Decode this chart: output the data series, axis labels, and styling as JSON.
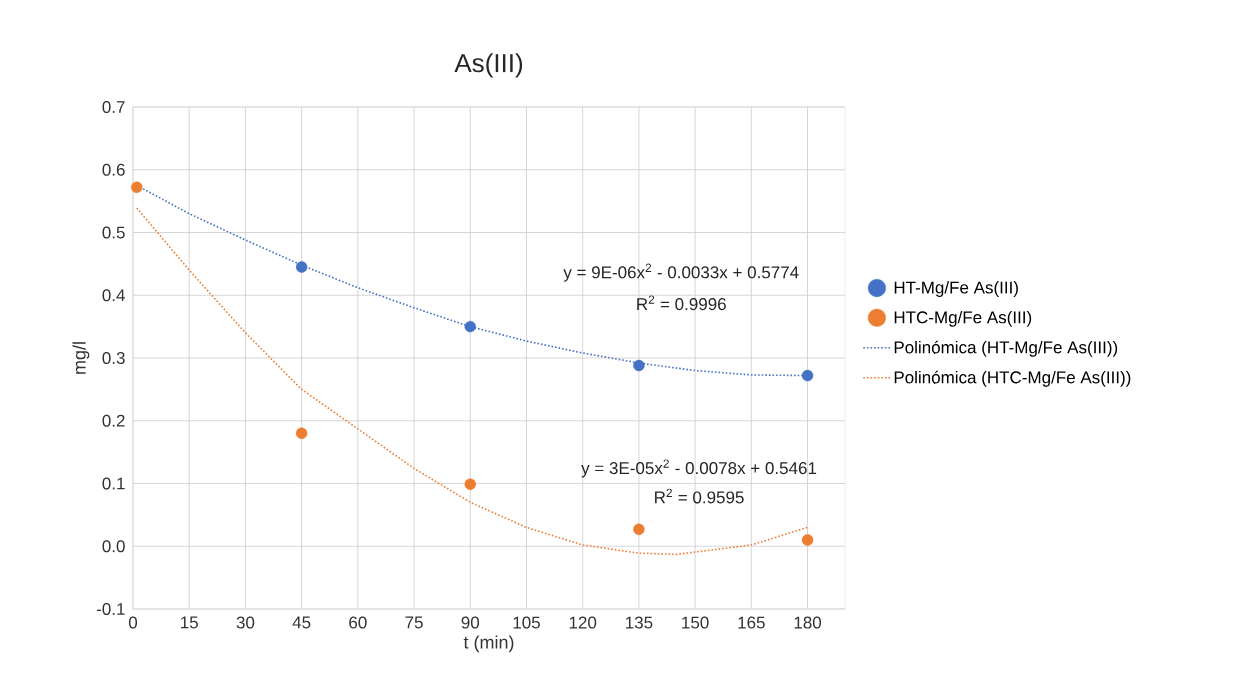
{
  "chart_data": {
    "type": "scatter",
    "title": "As(III)",
    "xlabel": "t (min)",
    "ylabel": "mg/l",
    "xlim": [
      0,
      190
    ],
    "ylim": [
      -0.1,
      0.7
    ],
    "xticks": [
      0,
      15,
      30,
      45,
      60,
      75,
      90,
      105,
      120,
      135,
      150,
      165,
      180
    ],
    "yticks": [
      -0.1,
      {
        "value": 0,
        "label": "0.0"
      },
      0.1,
      0.2,
      0.3,
      0.4,
      0.5,
      0.6,
      0.7
    ],
    "grid": true,
    "legend": "right",
    "marker": "circle",
    "series": [
      {
        "name": "HT-Mg/Fe As(III)",
        "color": "#4472c4",
        "x": [
          45,
          90,
          135,
          180
        ],
        "values": [
          0.445,
          0.35,
          0.288,
          0.272
        ]
      },
      {
        "name": "HTC-Mg/Fe As(III)",
        "color": "#ed7d31",
        "x": [
          1,
          45,
          90,
          135,
          180
        ],
        "values": [
          0.572,
          0.18,
          0.099,
          0.027,
          0.01
        ]
      },
      {
        "name": "Polinómica (HT-Mg/Fe As(III))",
        "type": "line",
        "line_style": "dotted",
        "marker": "none",
        "color": "#4472c4",
        "x": [
          1,
          15,
          30,
          45,
          60,
          75,
          90,
          105,
          120,
          135,
          150,
          165,
          180
        ],
        "values": [
          0.575,
          0.53,
          0.488,
          0.448,
          0.412,
          0.38,
          0.35,
          0.327,
          0.308,
          0.292,
          0.28,
          0.273,
          0.272
        ]
      },
      {
        "name": "Polinómica (HTC-Mg/Fe As(III))",
        "type": "line",
        "line_style": "dotted",
        "marker": "none",
        "color": "#ed7d31",
        "x": [
          1,
          15,
          30,
          45,
          60,
          75,
          90,
          105,
          120,
          135,
          145,
          165,
          180
        ],
        "values": [
          0.539,
          0.44,
          0.34,
          0.25,
          0.187,
          0.124,
          0.07,
          0.03,
          0.002,
          -0.011,
          -0.013,
          0.002,
          0.03
        ]
      }
    ],
    "annotations": [
      "y = 9E-06x$^{2}$ - 0.0033x + 0.5774",
      "R$^{2}$ = 0.9996",
      "y = 3E-05x$^{2}$ - 0.0078x + 0.5461",
      "R$^{2}$ = 0.9595"
    ]
  }
}
